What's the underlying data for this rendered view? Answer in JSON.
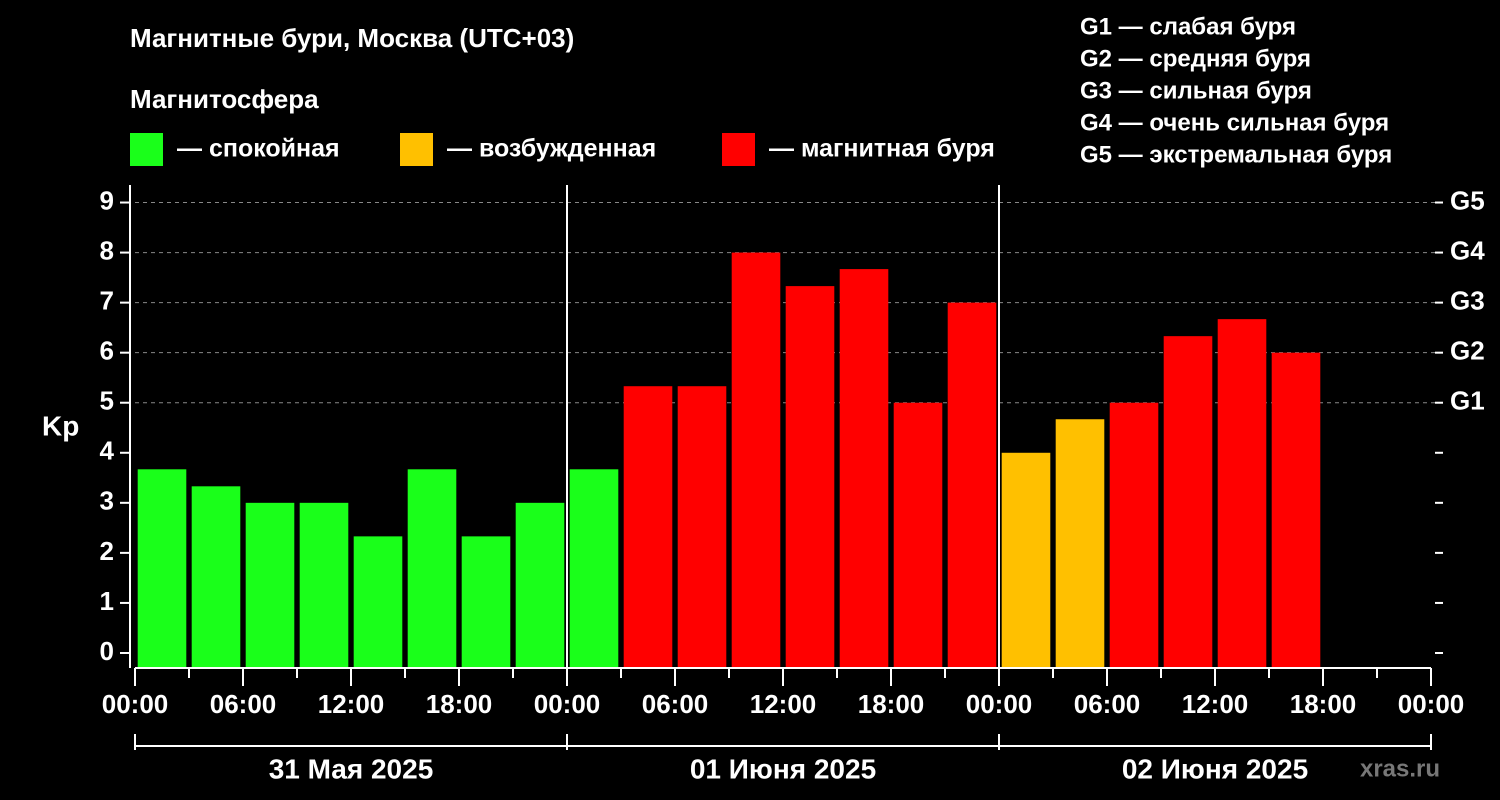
{
  "chart_data": {
    "type": "bar",
    "title": "Магнитные бури, Москва (UTC+03)",
    "legend_title": "Магнитосфера",
    "y_label": "Kp",
    "watermark": "xras.ru",
    "annotations": [
      "G1 — слабая буря",
      "G2 — средняя буря",
      "G3 — сильная буря",
      "G4 — очень сильная буря",
      "G5 — экстремальная буря"
    ],
    "x": [
      1.5,
      4.5,
      7.5,
      10.5,
      13.5,
      16.5,
      19.5,
      22.5,
      25.5,
      28.5,
      31.5,
      34.5,
      37.5,
      40.5,
      43.5,
      46.5,
      49.5,
      52.5,
      55.5,
      58.5,
      61.5,
      64.5,
      67.5,
      70.5
    ],
    "series": [
      {
        "name": "— спокойная",
        "color": "#1aff1a",
        "values": [
          3.67,
          3.33,
          3,
          3,
          2.33,
          3.67,
          2.33,
          3,
          3.67,
          null,
          null,
          null,
          null,
          null,
          null,
          null,
          null,
          null,
          null,
          null,
          null,
          null,
          null,
          null
        ]
      },
      {
        "name": "— возбужденная",
        "color": "#ffc000",
        "values": [
          null,
          null,
          null,
          null,
          null,
          null,
          null,
          null,
          null,
          null,
          null,
          null,
          null,
          null,
          null,
          null,
          4,
          4.67,
          null,
          null,
          null,
          null,
          null,
          null
        ]
      },
      {
        "name": "— магнитная буря",
        "color": "#ff0000",
        "values": [
          null,
          null,
          null,
          null,
          null,
          null,
          null,
          null,
          null,
          5.33,
          5.33,
          8,
          7.33,
          7.67,
          5,
          7,
          null,
          null,
          5,
          6.33,
          6.67,
          6,
          null,
          null
        ]
      }
    ],
    "xlim": [
      0,
      72
    ],
    "xticks": [
      {
        "value": 0,
        "label": "00:00"
      },
      {
        "value": 6,
        "label": "06:00"
      },
      {
        "value": 12,
        "label": "12:00"
      },
      {
        "value": 18,
        "label": "18:00"
      },
      {
        "value": 24,
        "label": "00:00"
      },
      {
        "value": 30,
        "label": "06:00"
      },
      {
        "value": 36,
        "label": "12:00"
      },
      {
        "value": 42,
        "label": "18:00"
      },
      {
        "value": 48,
        "label": "00:00"
      },
      {
        "value": 54,
        "label": "06:00"
      },
      {
        "value": 60,
        "label": "12:00"
      },
      {
        "value": 66,
        "label": "18:00"
      },
      {
        "value": 72,
        "label": "00:00"
      }
    ],
    "days": [
      "31 Мая 2025",
      "01 Июня 2025",
      "02 Июня 2025"
    ],
    "ylim": [
      -0.3,
      9.35
    ],
    "yticks": [
      0,
      1,
      2,
      3,
      4,
      5,
      6,
      7,
      8,
      9
    ],
    "y2lim": [
      -0.3,
      9.35
    ],
    "y2ticks": [
      {
        "value": 5,
        "label": "G1"
      },
      {
        "value": 6,
        "label": "G2"
      },
      {
        "value": 7,
        "label": "G3"
      },
      {
        "value": 8,
        "label": "G4"
      },
      {
        "value": 9,
        "label": "G5"
      }
    ],
    "grid": true
  }
}
